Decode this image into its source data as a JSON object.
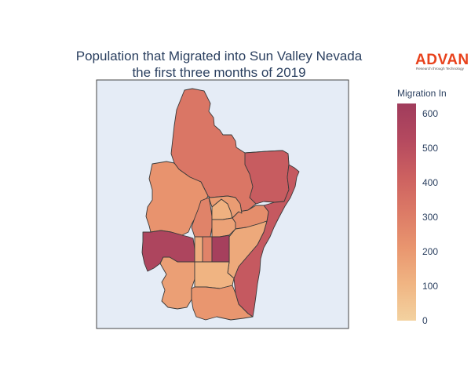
{
  "title": {
    "line1": "Population that Migrated into Sun Valley Nevada",
    "line2": "the first three months of 2019"
  },
  "logo": {
    "name": "ADVAN",
    "tagline": "Research through Technology",
    "color": "#e8421c"
  },
  "colorbar": {
    "title": "Migration In",
    "ticks": [
      "0",
      "100",
      "200",
      "300",
      "400",
      "500",
      "600"
    ],
    "tick_values": [
      0,
      100,
      200,
      300,
      400,
      500,
      600
    ],
    "range": [
      0,
      630
    ],
    "colorscale": [
      "#f3d2a0",
      "#f0b583",
      "#e9966f",
      "#dc7a66",
      "#cc6060",
      "#b4495f",
      "#a03c5c"
    ]
  },
  "map": {
    "background": "#e5ecf6",
    "regions": [
      {
        "name": "north",
        "value": 330
      },
      {
        "name": "east-upper",
        "value": 440
      },
      {
        "name": "east-coast",
        "value": 450
      },
      {
        "name": "west-upper",
        "value": 220
      },
      {
        "name": "west-mid",
        "value": 190
      },
      {
        "name": "west-lobe",
        "value": 560
      },
      {
        "name": "center-tall",
        "value": 280
      },
      {
        "name": "center-north-small",
        "value": 120
      },
      {
        "name": "center-mid-a",
        "value": 170
      },
      {
        "name": "center-mid-b",
        "value": 240
      },
      {
        "name": "center-east",
        "value": 145
      },
      {
        "name": "block-left",
        "value": 280
      },
      {
        "name": "block-right",
        "value": 600
      },
      {
        "name": "sq-left",
        "value": 135
      },
      {
        "name": "sq-right",
        "value": 600
      },
      {
        "name": "south-center",
        "value": 110
      },
      {
        "name": "south-west",
        "value": 180
      },
      {
        "name": "south",
        "value": 210
      }
    ]
  }
}
